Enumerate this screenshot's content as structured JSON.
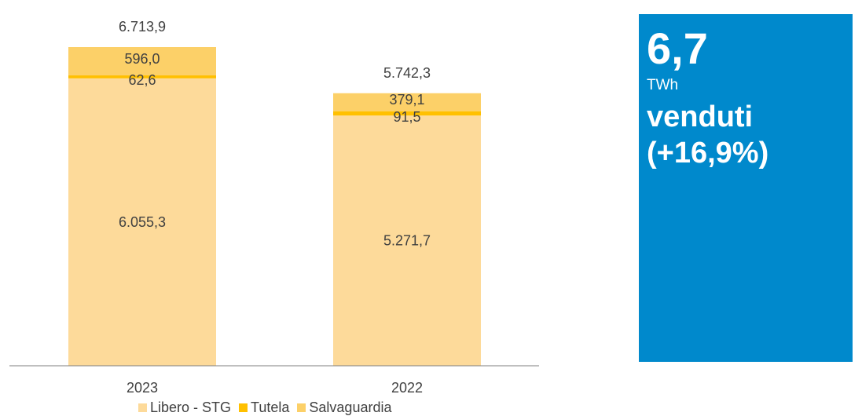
{
  "chart_data": {
    "type": "bar",
    "stacked": true,
    "categories": [
      "2023",
      "2022"
    ],
    "series": [
      {
        "name": "Libero - STG",
        "values": [
          6055.3,
          5271.7
        ],
        "labels": [
          "6.055,3",
          "5.271,7"
        ],
        "color": "#fdda9a"
      },
      {
        "name": "Tutela",
        "values": [
          62.6,
          91.5
        ],
        "labels": [
          "62,6",
          "91,5"
        ],
        "color": "#ffc000"
      },
      {
        "name": "Salvaguardia",
        "values": [
          596.0,
          379.1
        ],
        "labels": [
          "596,0",
          "379,1"
        ],
        "color": "#fcd068"
      }
    ],
    "totals": [
      6713.9,
      5742.3
    ],
    "total_labels": [
      "6.713,9",
      "5.742,3"
    ],
    "ylim": [
      0,
      7000
    ],
    "grid": false,
    "legend_position": "bottom"
  },
  "kpi": {
    "value": "6,7",
    "unit": "TWh",
    "label": "venduti",
    "change": "(+16,9%)",
    "background": "#0089cc"
  }
}
